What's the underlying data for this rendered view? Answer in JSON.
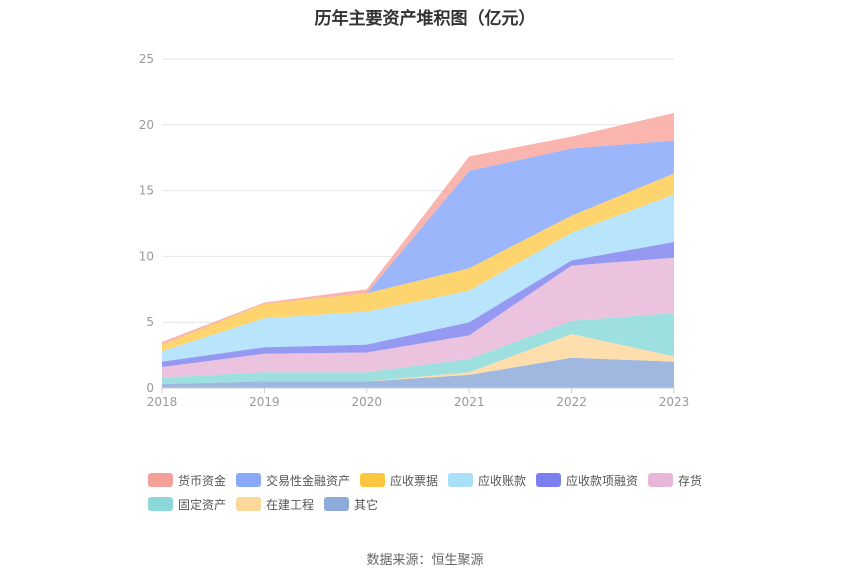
{
  "chart_data": {
    "type": "area",
    "stacked": true,
    "title": "历年主要资产堆积图（亿元）",
    "categories": [
      "2018",
      "2019",
      "2020",
      "2021",
      "2022",
      "2023"
    ],
    "ylim": [
      0,
      25
    ],
    "yticks": [
      0,
      5,
      10,
      15,
      20,
      25
    ],
    "grid": true,
    "legend_position": "bottom",
    "series": [
      {
        "name": "其它",
        "color": "#8facd9",
        "values": [
          0.3,
          0.5,
          0.5,
          1.0,
          2.3,
          2.0
        ]
      },
      {
        "name": "在建工程",
        "color": "#fdd89e",
        "values": [
          0.0,
          0.0,
          0.0,
          0.2,
          1.8,
          0.4
        ]
      },
      {
        "name": "固定资产",
        "color": "#8dd9d9",
        "values": [
          0.5,
          0.7,
          0.7,
          1.0,
          1.0,
          3.3
        ]
      },
      {
        "name": "存货",
        "color": "#e8b8d8",
        "values": [
          0.8,
          1.4,
          1.5,
          1.8,
          4.2,
          4.2
        ]
      },
      {
        "name": "应收款项融资",
        "color": "#8387f0",
        "values": [
          0.4,
          0.5,
          0.6,
          1.0,
          0.4,
          1.2
        ]
      },
      {
        "name": "应收账款",
        "color": "#ade0fb",
        "values": [
          0.8,
          2.2,
          2.5,
          2.4,
          2.1,
          3.6
        ]
      },
      {
        "name": "应收票据",
        "color": "#fdcc55",
        "values": [
          0.5,
          1.1,
          1.4,
          1.7,
          1.3,
          1.6
        ]
      },
      {
        "name": "交易性金融资产",
        "color": "#89a9f9",
        "values": [
          0.0,
          0.0,
          0.0,
          7.4,
          5.1,
          2.5
        ]
      },
      {
        "name": "货币资金",
        "color": "#f8a8a0",
        "values": [
          0.2,
          0.1,
          0.3,
          1.1,
          0.9,
          2.1
        ]
      }
    ]
  },
  "legend": [
    {
      "label": "货币资金",
      "color": "#f4a099"
    },
    {
      "label": "交易性金融资产",
      "color": "#89a9f9"
    },
    {
      "label": "应收票据",
      "color": "#fdc640"
    },
    {
      "label": "应收账款",
      "color": "#aadffa"
    },
    {
      "label": "应收款项融资",
      "color": "#7b7ff0"
    },
    {
      "label": "存货",
      "color": "#e8b6d8"
    },
    {
      "label": "固定资产",
      "color": "#8cd8d8"
    },
    {
      "label": "在建工程",
      "color": "#fdd89a"
    },
    {
      "label": "其它",
      "color": "#8cabd8"
    }
  ],
  "source": "数据来源：恒生聚源"
}
